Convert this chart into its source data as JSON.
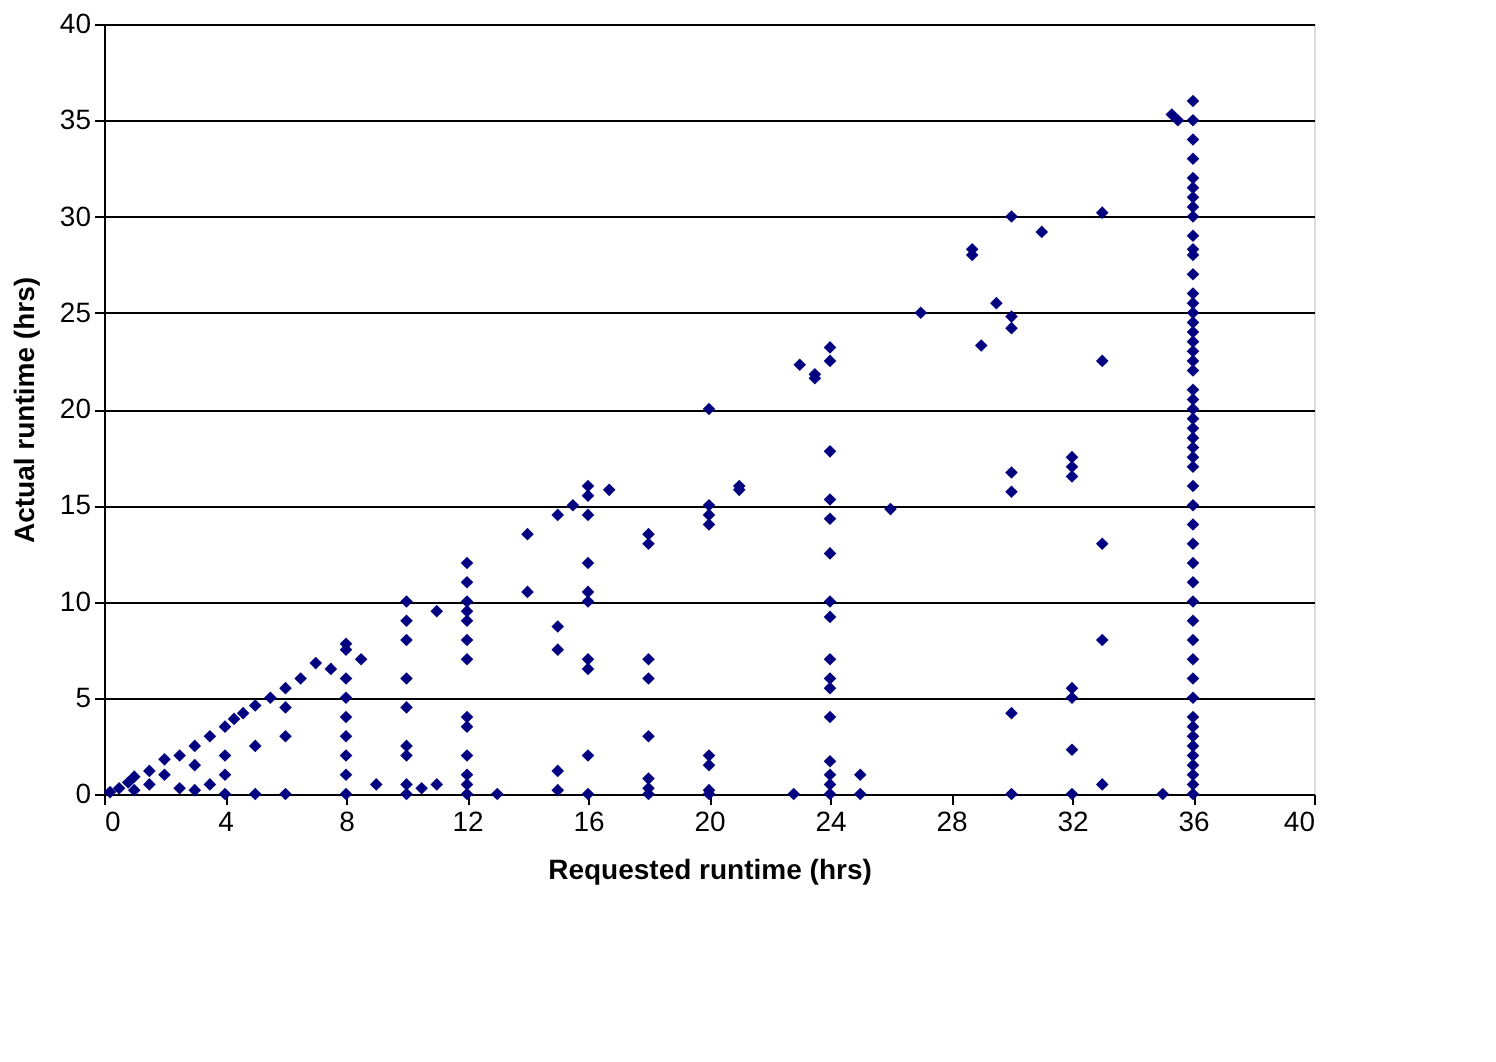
{
  "chart_data": {
    "type": "scatter",
    "xlabel": "Requested runtime (hrs)",
    "ylabel": "Actual runtime (hrs)",
    "xlim": [
      0,
      40
    ],
    "xticks": [
      0,
      4,
      8,
      12,
      16,
      20,
      24,
      28,
      32,
      36,
      40
    ],
    "ylim": [
      0,
      40
    ],
    "yticks": [
      0,
      5,
      10,
      15,
      20,
      25,
      30,
      35,
      40
    ],
    "grid": "y",
    "legend": false,
    "marker": "diamond",
    "series": [
      {
        "color": "#000080",
        "x": [
          0.2,
          0.5,
          0.8,
          1,
          1.5,
          2,
          2.5,
          3,
          3.5,
          4,
          4.3,
          4.6,
          5,
          5.5,
          6,
          6.5,
          7,
          7.5,
          8,
          8.5,
          1,
          1.5,
          2,
          2.5,
          3,
          3,
          3.5,
          4,
          4,
          4,
          5,
          5,
          6,
          6,
          6,
          8,
          8,
          8,
          8,
          8,
          8,
          8,
          8,
          9,
          10,
          10,
          10,
          10,
          10,
          10,
          10,
          10,
          10,
          11,
          11,
          10.5,
          12,
          12,
          12,
          12,
          12,
          12,
          12,
          12,
          12,
          12,
          12,
          12,
          12,
          13,
          14,
          14,
          15,
          15,
          15,
          15,
          15,
          15.5,
          16,
          16,
          16.7,
          16,
          16,
          16,
          16,
          16,
          16,
          16,
          16,
          18,
          18,
          18,
          18,
          18,
          18,
          18,
          18,
          20,
          20,
          20,
          20,
          20,
          20,
          20,
          20,
          21,
          21,
          24,
          24,
          24,
          24,
          24,
          24,
          24,
          24,
          24,
          24,
          24,
          24,
          24,
          24,
          24,
          24,
          23,
          23.5,
          23.5,
          22.8,
          25,
          25,
          26,
          27,
          28.7,
          28.7,
          29,
          29.5,
          30,
          30,
          30,
          30,
          30,
          30,
          30,
          31,
          32,
          32,
          32,
          32,
          32,
          32,
          32,
          33,
          33,
          33,
          33,
          33,
          35,
          35.3,
          35.5,
          36,
          36,
          36,
          36,
          36,
          36,
          36,
          36,
          36,
          36,
          36,
          36,
          36,
          36,
          36,
          36,
          36,
          36,
          36,
          36,
          36,
          36,
          36,
          36,
          36,
          36,
          36,
          36,
          36,
          36,
          36,
          36,
          36,
          36,
          36,
          36,
          36,
          36,
          36,
          36,
          36,
          36,
          36,
          36,
          36,
          36,
          36,
          36,
          36,
          36,
          36,
          36
        ],
        "values": [
          0.1,
          0.3,
          0.6,
          0.9,
          1.2,
          1.8,
          2,
          2.5,
          3,
          3.5,
          3.9,
          4.2,
          4.6,
          5,
          5.5,
          6,
          6.8,
          6.5,
          7.8,
          7,
          0.2,
          0.5,
          1,
          0.3,
          1.5,
          0.2,
          0.5,
          0,
          1,
          2,
          0,
          2.5,
          0,
          3,
          4.5,
          0,
          1,
          2,
          3,
          4,
          5,
          6,
          7.5,
          0.5,
          0,
          0.5,
          2,
          2.5,
          4.5,
          6,
          8,
          9,
          10,
          9.5,
          0.5,
          0.3,
          0,
          0.5,
          1,
          2,
          3.5,
          4,
          7,
          8,
          9,
          9.5,
          10,
          11,
          12,
          0,
          13.5,
          10.5,
          14.5,
          8.7,
          7.5,
          1.2,
          0.2,
          15,
          15.5,
          16,
          15.8,
          14.5,
          12,
          10.5,
          10,
          7,
          6.5,
          2,
          0,
          13.5,
          13,
          7,
          6,
          3,
          0.8,
          0.3,
          0,
          20,
          14.5,
          14,
          15,
          2,
          1.5,
          0.2,
          0,
          16,
          15.8,
          23.2,
          22.5,
          17.8,
          15.3,
          14.3,
          12.5,
          10,
          9.2,
          7,
          6,
          5.5,
          4,
          1.7,
          1,
          0.5,
          0,
          22.3,
          21.8,
          21.6,
          0,
          1,
          0,
          14.8,
          25,
          28.3,
          28,
          23.3,
          25.5,
          30,
          24.8,
          24.2,
          16.7,
          15.7,
          4.2,
          0,
          29.2,
          17.5,
          17,
          16.5,
          5.5,
          5,
          2.3,
          0,
          30.2,
          22.5,
          13,
          8,
          0.5,
          0,
          35.3,
          35,
          0,
          0.5,
          1,
          1.5,
          2,
          2.5,
          3,
          3.5,
          4,
          5,
          6,
          7,
          8,
          9,
          10,
          11,
          12,
          13,
          14,
          15,
          16,
          17,
          17.5,
          18,
          18.5,
          19,
          19.5,
          20,
          20.5,
          21,
          22,
          22.5,
          23,
          23.5,
          24,
          24.5,
          25,
          25.5,
          26,
          27,
          28,
          28.3,
          29,
          30,
          31,
          31.5,
          32,
          33,
          34,
          35,
          36,
          30.5
        ]
      }
    ]
  }
}
